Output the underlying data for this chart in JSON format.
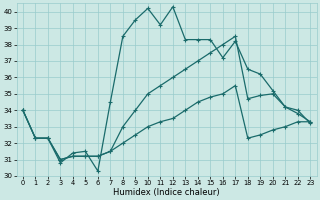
{
  "title": "",
  "xlabel": "Humidex (Indice chaleur)",
  "background_color": "#cce8e4",
  "grid_color": "#99cccc",
  "line_color": "#1a6b6b",
  "marker": "+",
  "xlim": [
    -0.5,
    23.5
  ],
  "ylim": [
    30,
    40.5
  ],
  "yticks": [
    30,
    31,
    32,
    33,
    34,
    35,
    36,
    37,
    38,
    39,
    40
  ],
  "xticks": [
    0,
    1,
    2,
    3,
    4,
    5,
    6,
    7,
    8,
    9,
    10,
    11,
    12,
    13,
    14,
    15,
    16,
    17,
    18,
    19,
    20,
    21,
    22,
    23
  ],
  "series1": [
    34,
    32.3,
    32.3,
    30.8,
    31.4,
    31.5,
    30.3,
    34.5,
    38.5,
    39.5,
    40.2,
    39.2,
    40.3,
    38.3,
    38.3,
    38.3,
    37.2,
    38.2,
    36.5,
    36.2,
    35.2,
    34.2,
    34.0,
    33.2
  ],
  "series2": [
    34,
    32.3,
    32.3,
    31.0,
    31.2,
    31.2,
    31.2,
    31.5,
    33.0,
    34.0,
    35.0,
    35.5,
    36.0,
    36.5,
    37.0,
    37.5,
    38.0,
    38.5,
    34.7,
    34.9,
    35.0,
    34.2,
    33.8,
    33.3
  ],
  "series3": [
    34,
    32.3,
    32.3,
    31.0,
    31.2,
    31.2,
    31.2,
    31.5,
    32.0,
    32.5,
    33.0,
    33.3,
    33.5,
    34.0,
    34.5,
    34.8,
    35.0,
    35.5,
    32.3,
    32.5,
    32.8,
    33.0,
    33.3,
    33.3
  ]
}
